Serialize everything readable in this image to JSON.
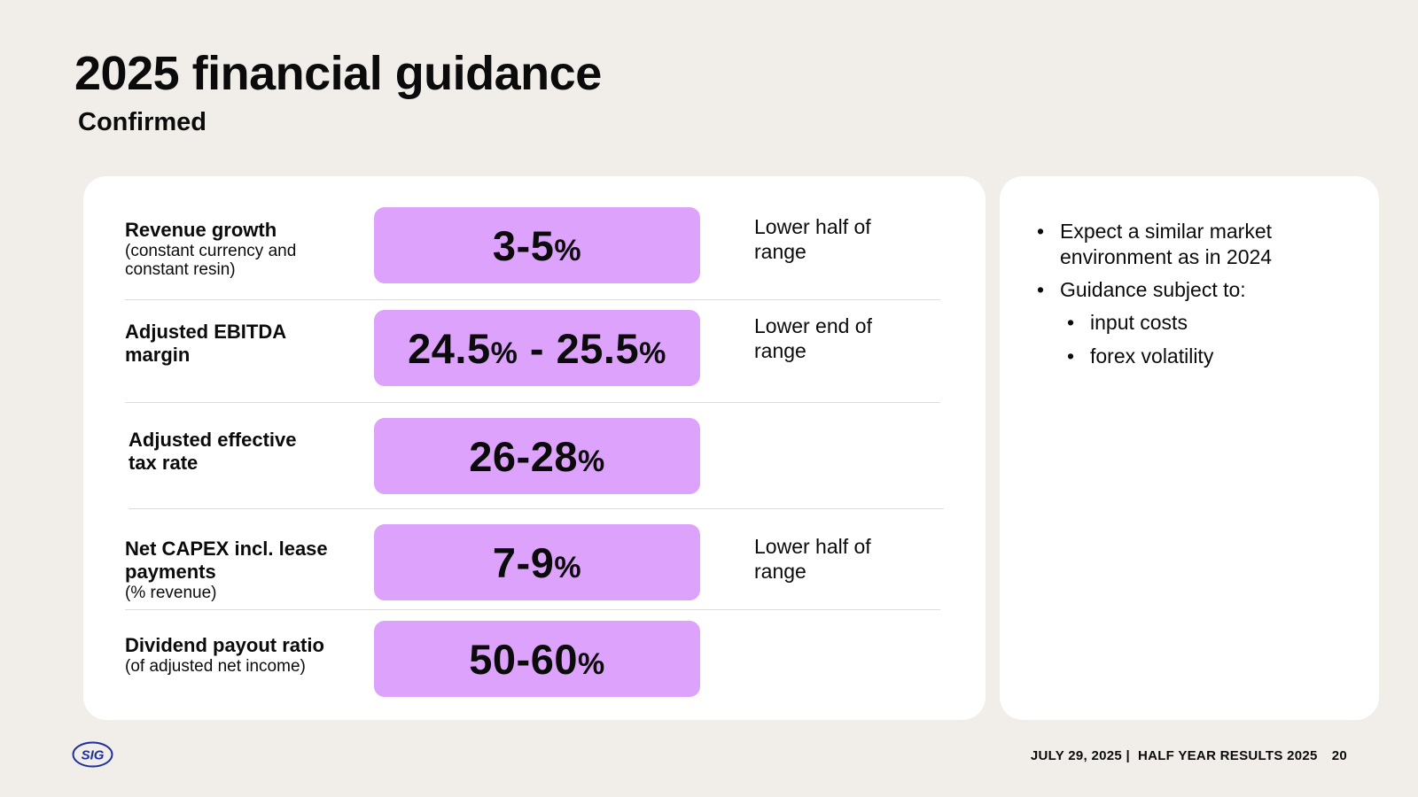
{
  "header": {
    "title": "2025 financial guidance",
    "subtitle": "Confirmed"
  },
  "rows": [
    {
      "label": "Revenue growth",
      "sublabel": "(constant currency and constant resin)",
      "value": "3-5",
      "value_unit": "%",
      "note": "Lower half of range"
    },
    {
      "label": "Adjusted EBITDA margin",
      "sublabel": "",
      "value_a": "24.5",
      "value_b": "25.5",
      "value_unit": "%",
      "value_sep": " - ",
      "note": "Lower end of range"
    },
    {
      "label": "Adjusted effective tax rate",
      "sublabel": "",
      "value": "26-28",
      "value_unit": "%",
      "note": ""
    },
    {
      "label": "Net CAPEX incl. lease payments",
      "sublabel": "(% revenue)",
      "value": "7-9",
      "value_unit": "%",
      "note": "Lower half of range"
    },
    {
      "label": "Dividend payout ratio",
      "sublabel": "(of adjusted net income)",
      "value": "50-60",
      "value_unit": "%",
      "note": ""
    }
  ],
  "side": {
    "bullets": [
      "Expect a similar market environment as in 2024",
      "Guidance subject to:"
    ],
    "sub_bullets": [
      "input costs",
      "forex volatility"
    ]
  },
  "footer": {
    "text": "JULY 29, 2025 |  HALF YEAR RESULTS 2025",
    "page": "20"
  },
  "logo": {
    "text": "SIG",
    "color": "#1d2f9c"
  },
  "colors": {
    "background": "#f1eee9",
    "pill": "#dda2fb",
    "card": "#ffffff"
  }
}
